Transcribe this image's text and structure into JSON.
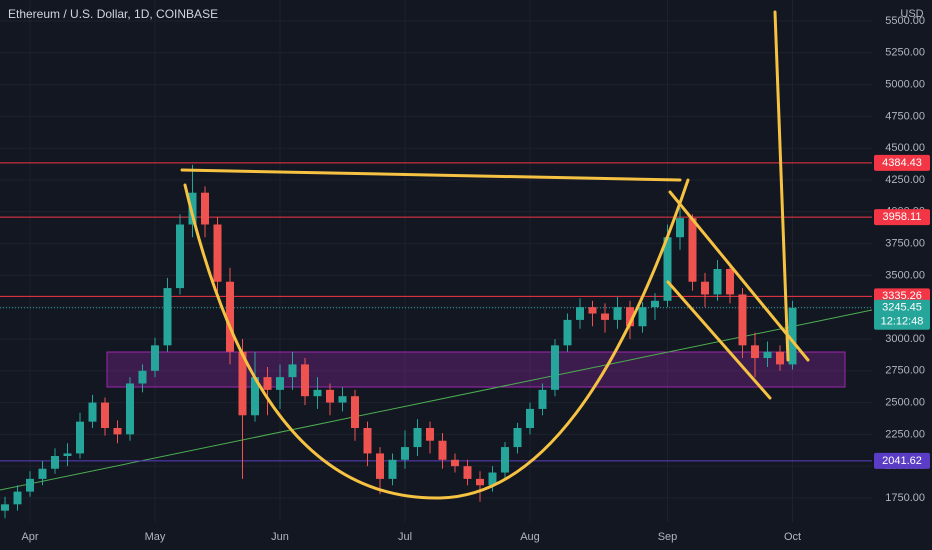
{
  "chart_data": {
    "type": "candlestick",
    "title": "Ethereum / U.S. Dollar, 1D, COINBASE",
    "currency": "USD",
    "categories": [
      null,
      null,
      "Apr",
      null,
      null,
      null,
      null,
      null,
      null,
      null,
      null,
      null,
      "May",
      null,
      null,
      null,
      null,
      null,
      null,
      null,
      null,
      null,
      "Jun",
      null,
      null,
      null,
      null,
      null,
      null,
      null,
      null,
      null,
      "Jul",
      null,
      null,
      null,
      null,
      null,
      null,
      null,
      null,
      null,
      "Aug",
      null,
      null,
      null,
      null,
      null,
      null,
      null,
      null,
      null,
      null,
      "Sep",
      null,
      null,
      null,
      null,
      null,
      null,
      null,
      null,
      null,
      "Oct"
    ],
    "open": [
      1650,
      1700,
      1800,
      1900,
      1980,
      2080,
      2100,
      2350,
      2500,
      2300,
      2250,
      2650,
      2750,
      2950,
      3400,
      3900,
      4150,
      3900,
      3450,
      2900,
      2400,
      2700,
      2600,
      2700,
      2800,
      2550,
      2600,
      2500,
      2550,
      2300,
      2100,
      1900,
      2050,
      2150,
      2300,
      2200,
      2050,
      2000,
      1900,
      1850,
      1950,
      2150,
      2300,
      2450,
      2600,
      2950,
      3150,
      3250,
      3200,
      3150,
      3250,
      3100,
      3250,
      3300,
      3800,
      3950,
      3450,
      3350,
      3550,
      3350,
      2950,
      2850,
      2900,
      2800
    ],
    "high": [
      1760,
      1850,
      1960,
      2040,
      2140,
      2180,
      2420,
      2560,
      2540,
      2360,
      2700,
      2800,
      3010,
      3480,
      3980,
      4370,
      4200,
      3960,
      3560,
      3000,
      2900,
      2780,
      2800,
      2900,
      2850,
      2700,
      2650,
      2620,
      2600,
      2350,
      2150,
      2100,
      2280,
      2370,
      2350,
      2260,
      2100,
      2050,
      1960,
      2000,
      2190,
      2340,
      2500,
      2650,
      3000,
      3200,
      3320,
      3300,
      3280,
      3330,
      3300,
      3290,
      3360,
      3900,
      4030,
      3980,
      3520,
      3620,
      3580,
      3400,
      3050,
      2980,
      2950,
      3300
    ],
    "low": [
      1590,
      1650,
      1760,
      1850,
      1940,
      2000,
      2060,
      2300,
      2240,
      2180,
      2200,
      2580,
      2700,
      2900,
      3350,
      3800,
      3800,
      3350,
      2800,
      1900,
      2350,
      2400,
      2450,
      2600,
      2480,
      2450,
      2400,
      2430,
      2200,
      2000,
      1780,
      1850,
      1980,
      2080,
      2100,
      1980,
      1950,
      1850,
      1720,
      1800,
      1900,
      2100,
      2250,
      2400,
      2550,
      2900,
      3080,
      3100,
      3050,
      3080,
      3000,
      3050,
      3150,
      3250,
      3700,
      3380,
      3250,
      3300,
      3280,
      2850,
      2700,
      2780,
      2750,
      2760
    ],
    "close": [
      1700,
      1800,
      1900,
      1980,
      2080,
      2100,
      2350,
      2500,
      2300,
      2250,
      2650,
      2750,
      2950,
      3400,
      3900,
      4150,
      3900,
      3450,
      2900,
      2400,
      2700,
      2600,
      2700,
      2800,
      2550,
      2600,
      2500,
      2550,
      2300,
      2100,
      1900,
      2050,
      2150,
      2300,
      2200,
      2050,
      2000,
      1900,
      1850,
      1950,
      2150,
      2300,
      2450,
      2600,
      2950,
      3150,
      3250,
      3200,
      3150,
      3250,
      3100,
      3250,
      3300,
      3800,
      3950,
      3450,
      3350,
      3550,
      3350,
      2950,
      2850,
      2900,
      2800,
      3245.45
    ],
    "up_color": "#26a69a",
    "down_color": "#ef5350",
    "ylim": [
      1561,
      5665
    ],
    "yticks": [
      {
        "value": 1750,
        "label": "1750.00"
      },
      {
        "value": 2000,
        "label": "2000.00"
      },
      {
        "value": 2250,
        "label": "2250.00"
      },
      {
        "value": 2500,
        "label": "2500.00"
      },
      {
        "value": 2750,
        "label": "2750.00"
      },
      {
        "value": 3000,
        "label": "3000.00"
      },
      {
        "value": 3250,
        "label": "3250.00"
      },
      {
        "value": 3500,
        "label": "3500.00"
      },
      {
        "value": 3750,
        "label": "3750.00"
      },
      {
        "value": 4000,
        "label": "4000.00"
      },
      {
        "value": 4250,
        "label": "4250.00"
      },
      {
        "value": 4500,
        "label": "4500.00"
      },
      {
        "value": 4750,
        "label": "4750.00"
      },
      {
        "value": 5000,
        "label": "5000.00"
      },
      {
        "value": 5250,
        "label": "5250.00"
      },
      {
        "value": 5500,
        "label": "5500.00"
      }
    ],
    "levels": [
      {
        "value": 4384.43,
        "color": "#f23645"
      },
      {
        "value": 3958.11,
        "color": "#f23645"
      },
      {
        "value": 3335.26,
        "color": "#f23645"
      },
      {
        "value": 2041.62,
        "color": "#5b3cc4"
      }
    ],
    "last_price": 3245.45,
    "countdown": "12:12:48"
  }
}
